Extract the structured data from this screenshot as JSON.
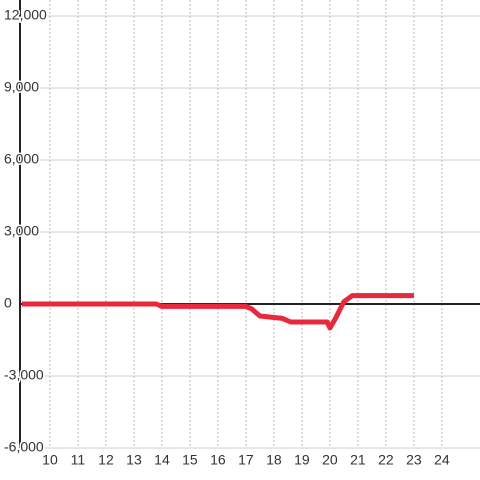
{
  "chart_data": {
    "type": "line",
    "x": [
      9,
      13.8,
      14,
      16.8,
      17,
      17.2,
      17.5,
      18.3,
      18.6,
      19.9,
      20,
      20.2,
      20.5,
      20.8,
      23
    ],
    "series": [
      {
        "color": "#e8283c",
        "values": [
          0,
          0,
          -100,
          -100,
          -100,
          -200,
          -500,
          -600,
          -750,
          -750,
          -1000,
          -600,
          100,
          350,
          350
        ]
      }
    ],
    "xlim": [
      8.93,
      25.36
    ],
    "xticks": [
      10,
      11,
      12,
      13,
      14,
      15,
      16,
      17,
      18,
      19,
      20,
      21,
      22,
      23,
      24
    ],
    "ylim": [
      -6000,
      12000
    ],
    "yticks": [
      {
        "value": -6000,
        "label": "-6,000"
      },
      {
        "value": -3000,
        "label": "-3,000"
      },
      0,
      {
        "value": 3000,
        "label": "3,000"
      },
      {
        "value": 6000,
        "label": "6,000"
      },
      {
        "value": 9000,
        "label": "9,000"
      },
      {
        "value": 12000,
        "label": "12,000"
      }
    ],
    "grid": true
  }
}
